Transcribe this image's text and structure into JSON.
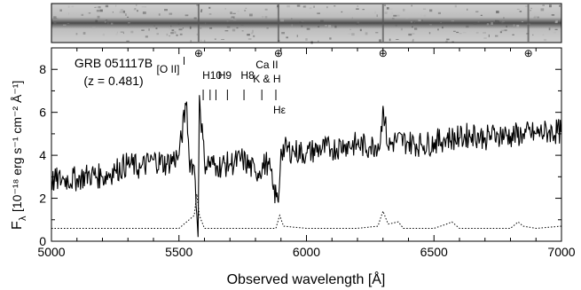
{
  "chart_data": {
    "type": "line",
    "panels": [
      "2D spectrum strip",
      "1D spectrum"
    ],
    "xlabel": "Observed wavelength [Å]",
    "ylabel_parts": {
      "main": "F",
      "sub": "λ",
      "units": "[10⁻¹⁸ erg s⁻¹ cm⁻² Å⁻¹]"
    },
    "xlim": [
      5000,
      7000
    ],
    "ylim": [
      0,
      9
    ],
    "xticks": [
      5000,
      5500,
      6000,
      6500,
      7000
    ],
    "xtick_labels": [
      "5000",
      "5500",
      "6000",
      "6500",
      "7000"
    ],
    "yticks": [
      0,
      2,
      4,
      6,
      8
    ],
    "ytick_labels": [
      "0",
      "2",
      "4",
      "6",
      "8"
    ],
    "annotation": {
      "object": "GRB 051117B",
      "redshift": "(z = 0.481)"
    },
    "telluric_symbol": "⊕",
    "telluric_wavelengths": [
      5577,
      5890,
      6300,
      6870
    ],
    "lines": [
      {
        "label": "[O II]",
        "wavelength": 5520
      },
      {
        "label": "H10",
        "wavelength": 5595
      },
      {
        "label": "H9",
        "wavelength": 5645
      },
      {
        "label": "H8",
        "wavelength": 5755
      },
      {
        "label": "Ca II",
        "wavelength": 5845
      },
      {
        "label": "K & H",
        "wavelength": 5845
      },
      {
        "label": "Hε",
        "wavelength": 5880
      }
    ],
    "line_marker_wavelengths": [
      5520,
      5595,
      5622,
      5645,
      5690,
      5755,
      5825,
      5880
    ],
    "series": [
      {
        "style": "solid",
        "x": [
          5000,
          5050,
          5100,
          5150,
          5200,
          5250,
          5300,
          5350,
          5400,
          5450,
          5500,
          5530,
          5540,
          5560,
          5575,
          5580,
          5600,
          5650,
          5700,
          5750,
          5800,
          5850,
          5870,
          5890,
          5900,
          5950,
          6000,
          6050,
          6100,
          6150,
          6200,
          6250,
          6290,
          6300,
          6320,
          6350,
          6400,
          6450,
          6500,
          6550,
          6600,
          6650,
          6700,
          6750,
          6800,
          6850,
          6900,
          6950,
          7000
        ],
        "y": [
          2.8,
          2.9,
          2.9,
          3.1,
          3.0,
          3.3,
          3.6,
          3.4,
          3.8,
          3.6,
          4.0,
          6.5,
          3.8,
          3.5,
          0.2,
          6.8,
          3.7,
          3.5,
          3.6,
          3.8,
          3.2,
          3.7,
          2.4,
          1.8,
          4.3,
          4.2,
          4.1,
          4.3,
          4.3,
          4.5,
          4.5,
          4.4,
          4.6,
          6.3,
          4.4,
          4.7,
          4.6,
          4.5,
          4.6,
          4.8,
          4.8,
          5.0,
          4.8,
          5.0,
          4.9,
          5.0,
          5.0,
          5.1,
          5.1
        ]
      },
      {
        "style": "dotted",
        "x": [
          5000,
          5500,
          5560,
          5570,
          5580,
          5600,
          5700,
          5880,
          5895,
          5910,
          6000,
          6200,
          6280,
          6300,
          6320,
          6360,
          6380,
          6500,
          6550,
          6570,
          6600,
          6800,
          6830,
          6850,
          6900,
          7000
        ],
        "y": [
          0.6,
          0.6,
          1.2,
          2.2,
          1.2,
          0.6,
          0.6,
          0.6,
          1.2,
          0.7,
          0.6,
          0.6,
          0.7,
          1.4,
          0.8,
          0.9,
          0.6,
          0.6,
          0.8,
          0.9,
          0.6,
          0.6,
          0.9,
          0.7,
          0.6,
          0.7
        ]
      }
    ],
    "grid": false,
    "legend": "none"
  }
}
